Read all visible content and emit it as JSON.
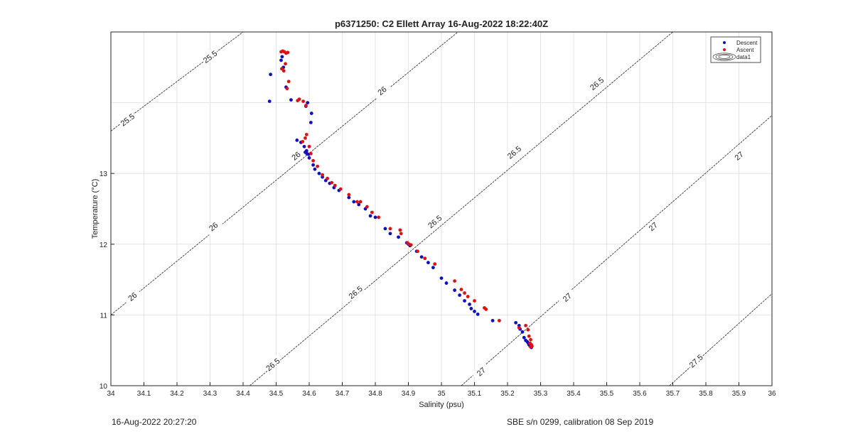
{
  "footer": {
    "timestamp": "16-Aug-2022 20:27:20",
    "calibration": "SBE s/n 0299, calibration 08 Sep 2019"
  },
  "chart_data": {
    "type": "scatter",
    "title": "p6371250: C2 Ellett Array 16-Aug-2022 18:22:40Z",
    "xlabel": "Salinity (psu)",
    "ylabel": "Temperature (°C)",
    "xlim": [
      34,
      36
    ],
    "ylim": [
      10,
      15
    ],
    "xticks": [
      "34",
      "34.1",
      "34.2",
      "34.3",
      "34.4",
      "34.5",
      "34.6",
      "34.7",
      "34.8",
      "34.9",
      "35",
      "35.1",
      "35.2",
      "35.3",
      "35.4",
      "35.5",
      "35.6",
      "35.7",
      "35.8",
      "35.9",
      "36"
    ],
    "yticks": [
      "10",
      "11",
      "12",
      "13"
    ],
    "grid": true,
    "legend_position": "top-right",
    "legend": [
      "Descent",
      "Ascent",
      "data1"
    ],
    "colors": {
      "descent": "#1010c0",
      "ascent": "#e01010",
      "contour": "#222222",
      "grid": "#dddddd",
      "axis": "#262626"
    },
    "series": [
      {
        "name": "Descent",
        "x": [
          34.48,
          34.483,
          34.515,
          34.518,
          34.522,
          34.53,
          34.545,
          34.563,
          34.575,
          34.585,
          34.592,
          34.598,
          34.605,
          34.607,
          34.595,
          34.59,
          34.588,
          34.593,
          34.6,
          34.612,
          34.617,
          34.63,
          34.64,
          34.65,
          34.662,
          34.675,
          34.69,
          34.72,
          34.735,
          34.75,
          34.77,
          34.785,
          34.8,
          34.83,
          34.845,
          34.87,
          34.895,
          34.9,
          34.905,
          34.925,
          34.94,
          34.96,
          34.975,
          35.0,
          35.015,
          35.04,
          35.055,
          35.07,
          35.085,
          35.09,
          35.1,
          35.11,
          35.155,
          35.225,
          35.235,
          35.238,
          35.245,
          35.25,
          35.255,
          35.26,
          35.263,
          35.265,
          35.268,
          35.27,
          35.272
        ],
        "y": [
          14.02,
          14.4,
          14.6,
          14.65,
          14.5,
          14.22,
          14.04,
          13.47,
          13.44,
          13.38,
          13.32,
          13.27,
          13.72,
          13.85,
          14.0,
          13.95,
          13.3,
          13.28,
          13.22,
          13.12,
          13.06,
          13.0,
          12.95,
          12.9,
          12.86,
          12.8,
          12.76,
          12.66,
          12.6,
          12.56,
          12.5,
          12.4,
          12.38,
          12.22,
          12.15,
          12.1,
          12.02,
          12.0,
          11.98,
          11.9,
          11.82,
          11.74,
          11.67,
          11.52,
          11.45,
          11.35,
          11.28,
          11.2,
          11.15,
          11.09,
          11.05,
          11.01,
          10.92,
          10.89,
          10.85,
          10.8,
          10.76,
          10.68,
          10.64,
          10.62,
          10.6,
          10.58,
          10.56,
          10.55,
          10.54
        ]
      },
      {
        "name": "Ascent",
        "x": [
          34.515,
          34.52,
          34.525,
          34.53,
          34.535,
          34.517,
          34.523,
          34.528,
          34.533,
          34.538,
          34.565,
          34.57,
          34.582,
          34.59,
          34.58,
          34.588,
          34.592,
          34.6,
          34.605,
          34.612,
          34.625,
          34.64,
          34.655,
          34.668,
          34.678,
          34.695,
          34.72,
          34.745,
          34.755,
          34.775,
          34.79,
          34.81,
          34.845,
          34.875,
          34.878,
          34.897,
          34.902,
          34.908,
          34.928,
          34.95,
          34.98,
          35.04,
          35.06,
          35.07,
          35.08,
          35.1,
          35.13,
          35.135,
          35.175,
          35.235,
          35.255,
          35.262,
          35.265,
          35.27,
          35.268,
          35.272,
          35.274,
          35.27
        ],
        "y": [
          14.72,
          14.73,
          14.72,
          14.7,
          14.71,
          14.48,
          14.45,
          14.55,
          14.2,
          14.3,
          14.03,
          14.05,
          14.02,
          13.96,
          13.45,
          13.5,
          13.55,
          13.38,
          13.28,
          13.18,
          13.1,
          12.98,
          12.93,
          12.87,
          12.83,
          12.78,
          12.7,
          12.6,
          12.6,
          12.53,
          12.45,
          12.38,
          12.22,
          12.2,
          12.15,
          12.02,
          12.0,
          11.99,
          11.9,
          11.8,
          11.72,
          11.48,
          11.36,
          11.31,
          11.26,
          11.2,
          11.1,
          11.08,
          10.92,
          10.82,
          10.85,
          10.79,
          10.7,
          10.65,
          10.6,
          10.58,
          10.56,
          10.55
        ]
      }
    ],
    "isopycnals": [
      {
        "label": "25.5",
        "endpoints": [
          [
            34.0,
            13.6
          ],
          [
            34.4,
            15.0
          ]
        ],
        "labels_at": [
          [
            34.05,
            13.76
          ],
          [
            34.3,
            14.65
          ]
        ]
      },
      {
        "label": "26",
        "endpoints": [
          [
            34.0,
            11.0
          ],
          [
            35.05,
            15.0
          ]
        ],
        "labels_at": [
          [
            34.065,
            11.26
          ],
          [
            34.31,
            12.25
          ],
          [
            34.56,
            13.25
          ],
          [
            34.82,
            14.17
          ]
        ]
      },
      {
        "label": "26.5",
        "endpoints": [
          [
            34.42,
            10.0
          ],
          [
            35.7,
            15.0
          ]
        ],
        "labels_at": [
          [
            34.49,
            10.3
          ],
          [
            34.74,
            11.32
          ],
          [
            34.98,
            12.32
          ],
          [
            35.22,
            13.3
          ],
          [
            35.47,
            14.27
          ]
        ]
      },
      {
        "label": "27",
        "endpoints": [
          [
            35.06,
            10.0
          ],
          [
            36.0,
            13.82
          ]
        ],
        "labels_at": [
          [
            35.12,
            10.2
          ],
          [
            35.38,
            11.25
          ],
          [
            35.64,
            12.25
          ],
          [
            35.9,
            13.25
          ]
        ]
      },
      {
        "label": "27.5",
        "endpoints": [
          [
            35.69,
            10.0
          ],
          [
            36.0,
            11.3
          ]
        ],
        "labels_at": [
          [
            35.77,
            10.35
          ]
        ]
      }
    ]
  }
}
